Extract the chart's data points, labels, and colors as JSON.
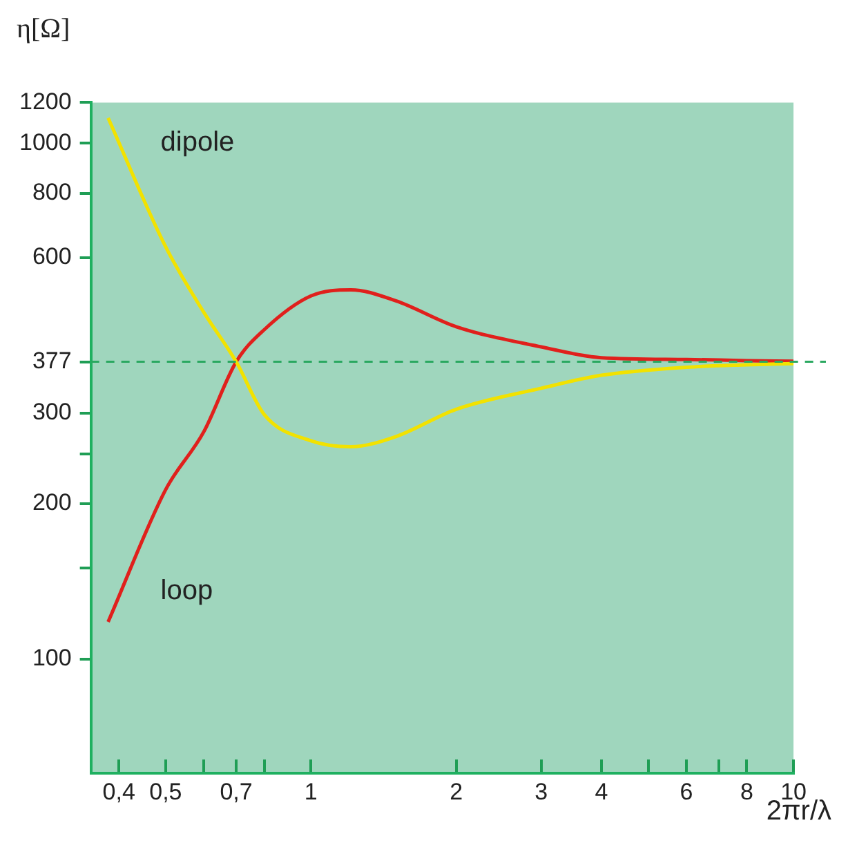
{
  "chart_data": {
    "type": "line",
    "xlabel": "2πr/λ",
    "ylabel": "η[Ω]",
    "log": "xy",
    "grid": false,
    "legend": false,
    "marker": "none",
    "line_style": "solid",
    "xlim": [
      0.35,
      10
    ],
    "ylim": [
      60,
      1200
    ],
    "xticks": [
      {
        "value": 0.4,
        "label": "0,4"
      },
      {
        "value": 0.5,
        "label": "0,5"
      },
      {
        "value": 0.6,
        "label": null
      },
      {
        "value": 0.7,
        "label": "0,7"
      },
      {
        "value": 0.8,
        "label": null
      },
      1,
      2,
      3,
      4,
      {
        "value": 5,
        "label": null
      },
      6,
      {
        "value": 7,
        "label": null
      },
      8,
      10
    ],
    "yticks": [
      100,
      {
        "value": 150,
        "label": null
      },
      200,
      {
        "value": 250,
        "label": null
      },
      300,
      377,
      600,
      800,
      1000,
      1200
    ],
    "series": [
      {
        "name": "dipole",
        "color": "#f2e200",
        "x": [
          0.38,
          0.5,
          0.6,
          0.7,
          0.8,
          1,
          1.21,
          1.5,
          2,
          3,
          4,
          6,
          8,
          10
        ],
        "values": [
          1120,
          630,
          470,
          377,
          298,
          265,
          258,
          270,
          305,
          335,
          355,
          368,
          372,
          374
        ]
      },
      {
        "name": "loop",
        "color": "#e0201c",
        "x": [
          0.38,
          0.5,
          0.6,
          0.7,
          0.8,
          1,
          1.21,
          1.5,
          2,
          3,
          4,
          6,
          8,
          10
        ],
        "values": [
          118,
          213,
          276,
          377,
          435,
          506,
          520,
          495,
          441,
          403,
          384,
          381,
          379,
          378
        ]
      }
    ],
    "ref_lines": [
      {
        "axis": "y",
        "value": 377,
        "color": "#2aa860",
        "line_style": "dashed"
      }
    ]
  }
}
